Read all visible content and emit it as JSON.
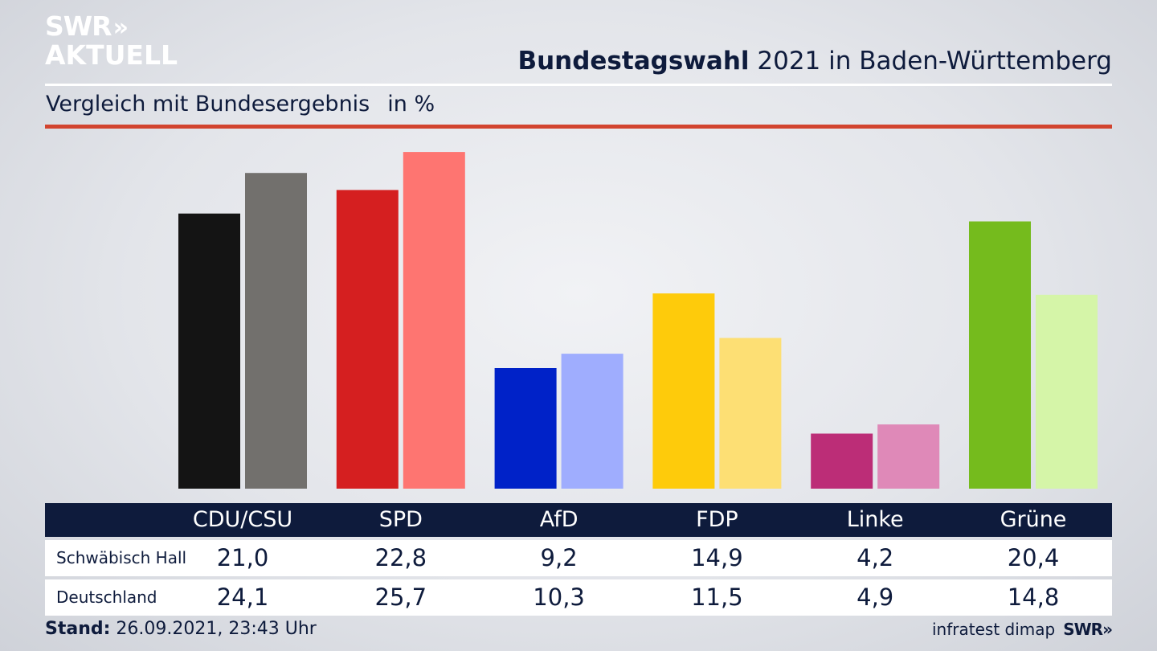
{
  "header": {
    "logo_line1": "SWR",
    "logo_arrows": "»",
    "logo_line2": "AKTUELL",
    "title_bold": "Bundestagswahl",
    "title_rest": "2021 in Baden-Württemberg",
    "subtitle": "Vergleich mit Bundesergebnis",
    "unit": "in %"
  },
  "colors": {
    "accent_red_line": "#d2442f",
    "navy": "#0e1b3c"
  },
  "chart_data": {
    "type": "bar",
    "categories": [
      "CDU/CSU",
      "SPD",
      "AfD",
      "FDP",
      "Linke",
      "Grüne"
    ],
    "series": [
      {
        "name": "Schwäbisch Hall",
        "values": [
          21.0,
          22.8,
          9.2,
          14.9,
          4.2,
          20.4
        ],
        "labels": [
          "21,0",
          "22,8",
          "9,2",
          "14,9",
          "4,2",
          "20,4"
        ],
        "colors": [
          "#141414",
          "#d51f20",
          "#0022c8",
          "#fecb0b",
          "#bc2d77",
          "#75bb1d"
        ]
      },
      {
        "name": "Deutschland",
        "values": [
          24.1,
          25.7,
          10.3,
          11.5,
          4.9,
          14.8
        ],
        "labels": [
          "24,1",
          "25,7",
          "10,3",
          "11,5",
          "4,9",
          "14,8"
        ],
        "colors": [
          "#72706d",
          "#fe7571",
          "#9fadfe",
          "#fddf74",
          "#df89b8",
          "#d5f5a8"
        ]
      }
    ],
    "ylim": [
      0,
      27
    ],
    "grid": false,
    "legend": "table-below"
  },
  "footer": {
    "stand_label": "Stand:",
    "stand_value": "26.09.2021, 23:43 Uhr",
    "source": "infratest dimap",
    "logo": "SWR»"
  }
}
